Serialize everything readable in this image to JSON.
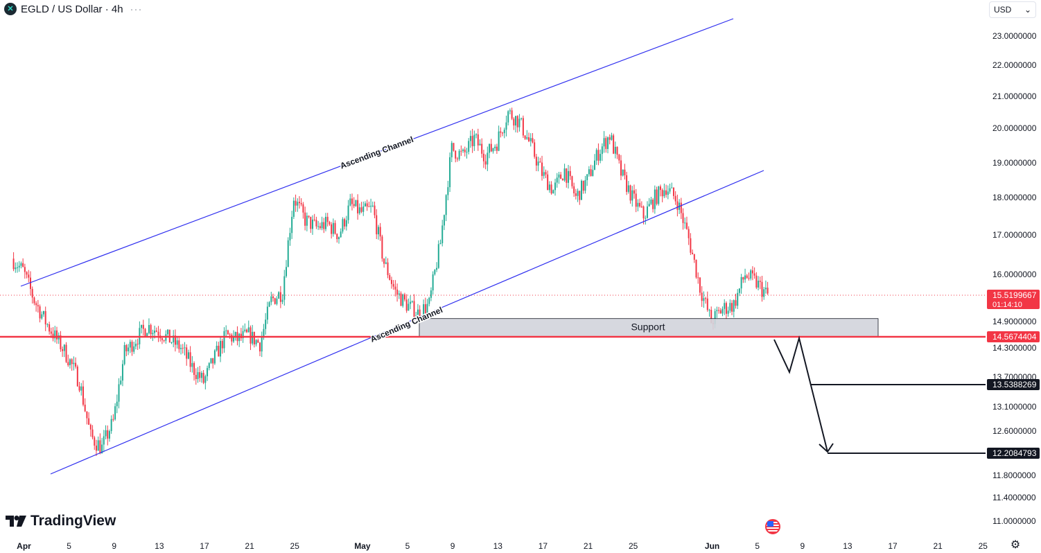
{
  "header": {
    "symbol_title": "EGLD / US Dollar · 4h",
    "logo_glyph": "✕",
    "menu_dots": "···"
  },
  "currency_selector": {
    "value": "USD"
  },
  "branding": {
    "name": "TradingView"
  },
  "colors": {
    "up": "#22ab94",
    "down": "#f23645",
    "channel": "#2e2eef",
    "support_line": "#f23645",
    "support_zone": "#d1d4dc"
  },
  "chart_data": {
    "type": "candlestick",
    "x_ticks": [
      "Apr",
      "5",
      "9",
      "13",
      "17",
      "21",
      "25",
      "May",
      "5",
      "9",
      "13",
      "17",
      "21",
      "25",
      "Jun",
      "5",
      "9",
      "13",
      "17",
      "21",
      "25"
    ],
    "y_ticks": [
      "23.0000000",
      "22.0000000",
      "21.0000000",
      "20.0000000",
      "19.0000000",
      "18.0000000",
      "17.0000000",
      "16.0000000",
      "14.9000000",
      "14.3000000",
      "13.7000000",
      "13.1000000",
      "12.6000000",
      "11.8000000",
      "11.4000000",
      "11.0000000"
    ],
    "price_path": [
      [
        "Mar 31",
        16.4
      ],
      [
        "Apr 1",
        16.1
      ],
      [
        "Apr 2",
        15.4
      ],
      [
        "Apr 3",
        14.9
      ],
      [
        "Apr 4",
        14.5
      ],
      [
        "Apr 5",
        14.1
      ],
      [
        "Apr 6",
        13.6
      ],
      [
        "Apr 7",
        12.5
      ],
      [
        "Apr 8",
        12.3
      ],
      [
        "Apr 9",
        12.8
      ],
      [
        "Apr 10",
        14.2
      ],
      [
        "Apr 11",
        14.5
      ],
      [
        "Apr 12",
        14.8
      ],
      [
        "Apr 13",
        14.7
      ],
      [
        "Apr 14",
        14.5
      ],
      [
        "Apr 15",
        14.3
      ],
      [
        "Apr 16",
        13.9
      ],
      [
        "Apr 17",
        13.6
      ],
      [
        "Apr 18",
        14.1
      ],
      [
        "Apr 19",
        14.6
      ],
      [
        "Apr 20",
        14.5
      ],
      [
        "Apr 21",
        14.6
      ],
      [
        "Apr 22",
        14.4
      ],
      [
        "Apr 23",
        15.4
      ],
      [
        "Apr 24",
        15.6
      ],
      [
        "Apr 25",
        18.0
      ],
      [
        "Apr 26",
        17.4
      ],
      [
        "Apr 27",
        17.2
      ],
      [
        "Apr 28",
        17.3
      ],
      [
        "Apr 29",
        17.0
      ],
      [
        "Apr 30",
        17.8
      ],
      [
        "May 1",
        17.6
      ],
      [
        "May 2",
        17.7
      ],
      [
        "May 3",
        16.3
      ],
      [
        "May 4",
        15.6
      ],
      [
        "May 5",
        15.3
      ],
      [
        "May 6",
        15.1
      ],
      [
        "May 7",
        15.3
      ],
      [
        "May 8",
        16.8
      ],
      [
        "May 9",
        19.4
      ],
      [
        "May 10",
        19.2
      ],
      [
        "May 11",
        19.7
      ],
      [
        "May 12",
        19.2
      ],
      [
        "May 13",
        19.6
      ],
      [
        "May 14",
        20.5
      ],
      [
        "May 15",
        20.2
      ],
      [
        "May 16",
        19.5
      ],
      [
        "May 17",
        18.7
      ],
      [
        "May 18",
        18.2
      ],
      [
        "May 19",
        18.8
      ],
      [
        "May 20",
        18.0
      ],
      [
        "May 21",
        18.5
      ],
      [
        "May 22",
        19.3
      ],
      [
        "May 23",
        19.8
      ],
      [
        "May 24",
        18.7
      ],
      [
        "May 25",
        18.0
      ],
      [
        "May 26",
        17.5
      ],
      [
        "May 27",
        18.0
      ],
      [
        "May 28",
        18.3
      ],
      [
        "May 29",
        17.9
      ],
      [
        "May 30",
        16.9
      ],
      [
        "May 31",
        15.7
      ],
      [
        "Jun 1",
        14.9
      ],
      [
        "Jun 2",
        15.2
      ],
      [
        "Jun 3",
        15.3
      ],
      [
        "Jun 4",
        16.0
      ],
      [
        "Jun 5",
        15.8
      ],
      [
        "Jun 6",
        15.52
      ]
    ],
    "last_price": {
      "value": "15.5199667",
      "countdown": "01:14:10"
    },
    "levels": [
      {
        "label": "14.5674404",
        "value": 14.5674404,
        "role": "support"
      },
      {
        "label": "13.5388269",
        "value": 13.5388269,
        "role": "target-1"
      },
      {
        "label": "12.2084793",
        "value": 12.2084793,
        "role": "target-2"
      }
    ],
    "annotations": {
      "upper_channel_label": "Ascending Channel",
      "lower_channel_label": "Ascending Channel",
      "support_zone_label": "Support"
    }
  }
}
